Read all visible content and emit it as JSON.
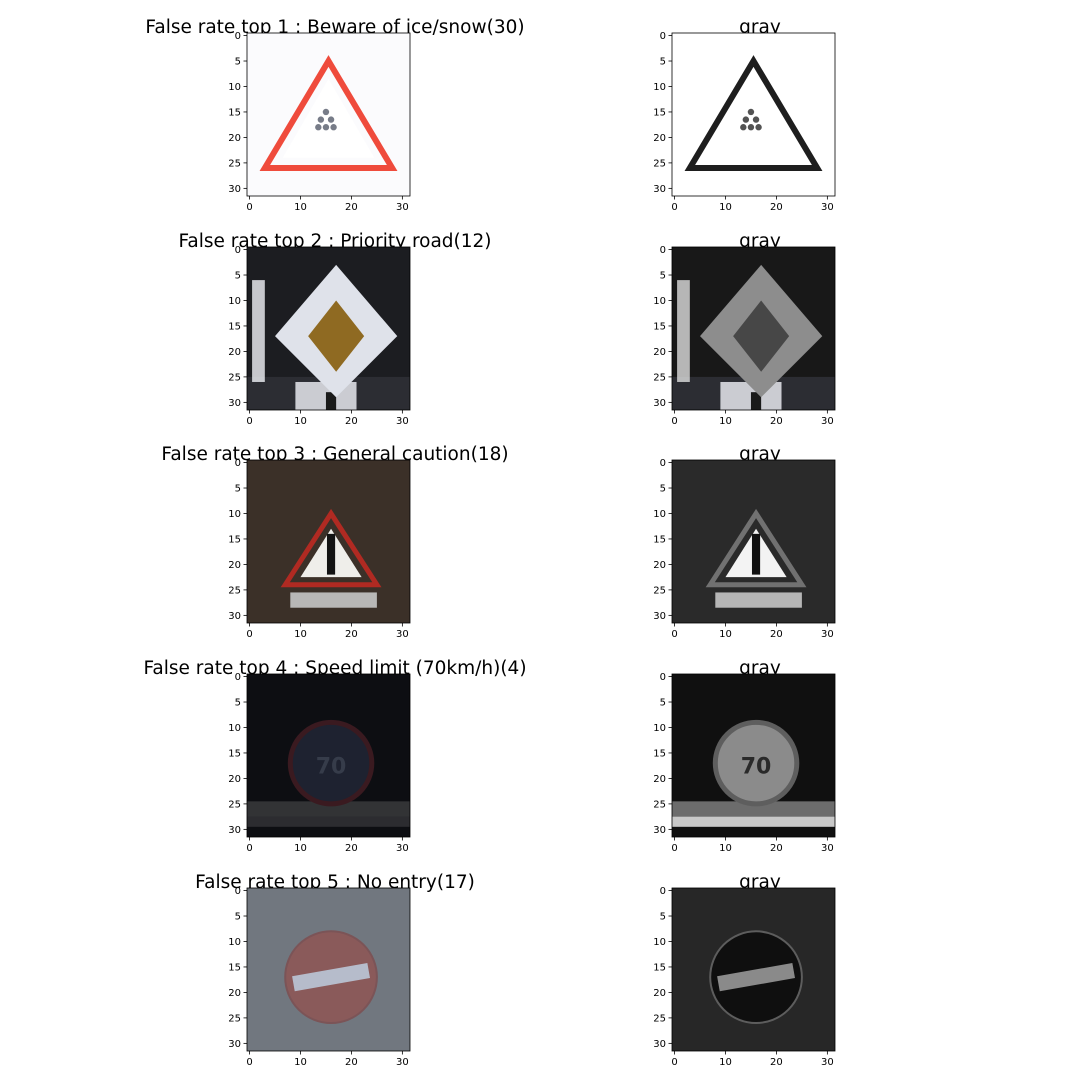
{
  "figure": {
    "panels": [
      {
        "title": "False rate top 1 : Beware of ice/snow(30)",
        "kind": "color",
        "sign": "ice",
        "palette": {
          "bg": "#fbfbfd",
          "frame": "#ef4b3c",
          "inner": "#ffffff",
          "symbol": "#4a5060"
        }
      },
      {
        "title": "gray",
        "kind": "gray",
        "sign": "ice",
        "palette": {
          "bg": "#ffffff",
          "frame": "#1e1e1e",
          "inner": "#ffffff",
          "symbol": "#1a1a1a"
        }
      },
      {
        "title": "False rate top 2 : Priority road(12)",
        "kind": "color",
        "sign": "priority",
        "palette": {
          "bg": "#1c1d21",
          "frame": "#dfe2ea",
          "inner": "#8f6a22",
          "symbol": "#f1f3f8"
        }
      },
      {
        "title": "gray",
        "kind": "gray",
        "sign": "priority",
        "palette": {
          "bg": "#181818",
          "frame": "#8d8d8d",
          "inner": "#474747",
          "symbol": "#dedede"
        }
      },
      {
        "title": "False rate top 3 : General caution(18)",
        "kind": "color",
        "sign": "caution",
        "palette": {
          "bg": "#3b3028",
          "frame": "#b02a22",
          "inner": "#efeeea",
          "symbol": "#131313"
        }
      },
      {
        "title": "gray",
        "kind": "gray",
        "sign": "caution",
        "palette": {
          "bg": "#2a2a2a",
          "frame": "#717171",
          "inner": "#f3f3f3",
          "symbol": "#111111"
        }
      },
      {
        "title": "False rate top 4 : Speed limit (70km/h)(4)",
        "kind": "color",
        "sign": "speed",
        "palette": {
          "bg": "#0d0e12",
          "frame": "#3a1a20",
          "inner": "#1e2230",
          "symbol": "#363c4a"
        }
      },
      {
        "title": "gray",
        "kind": "gray",
        "sign": "speed",
        "palette": {
          "bg": "#101010",
          "frame": "#5e5e5e",
          "inner": "#8b8b8b",
          "symbol": "#2a2a2a"
        }
      },
      {
        "title": "False rate top 5 : No entry(17)",
        "kind": "color",
        "sign": "noentry",
        "palette": {
          "bg": "#71777f",
          "frame": "#7b5457",
          "inner": "#8a5a5a",
          "symbol": "#b6bccb"
        }
      },
      {
        "title": "gray",
        "kind": "gray",
        "sign": "noentry",
        "palette": {
          "bg": "#272727",
          "frame": "#5d5d5d",
          "inner": "#0f0f0f",
          "symbol": "#8a8a8a"
        }
      }
    ]
  },
  "chart_data": {
    "type": "heatmap",
    "image_size": [
      32,
      32
    ],
    "axis": {
      "xlim": [
        -0.5,
        31.5
      ],
      "ylim": [
        31.5,
        -0.5
      ],
      "xticks": [
        0,
        10,
        20,
        30
      ],
      "yticks": [
        0,
        5,
        10,
        15,
        20,
        25,
        30
      ]
    }
  }
}
